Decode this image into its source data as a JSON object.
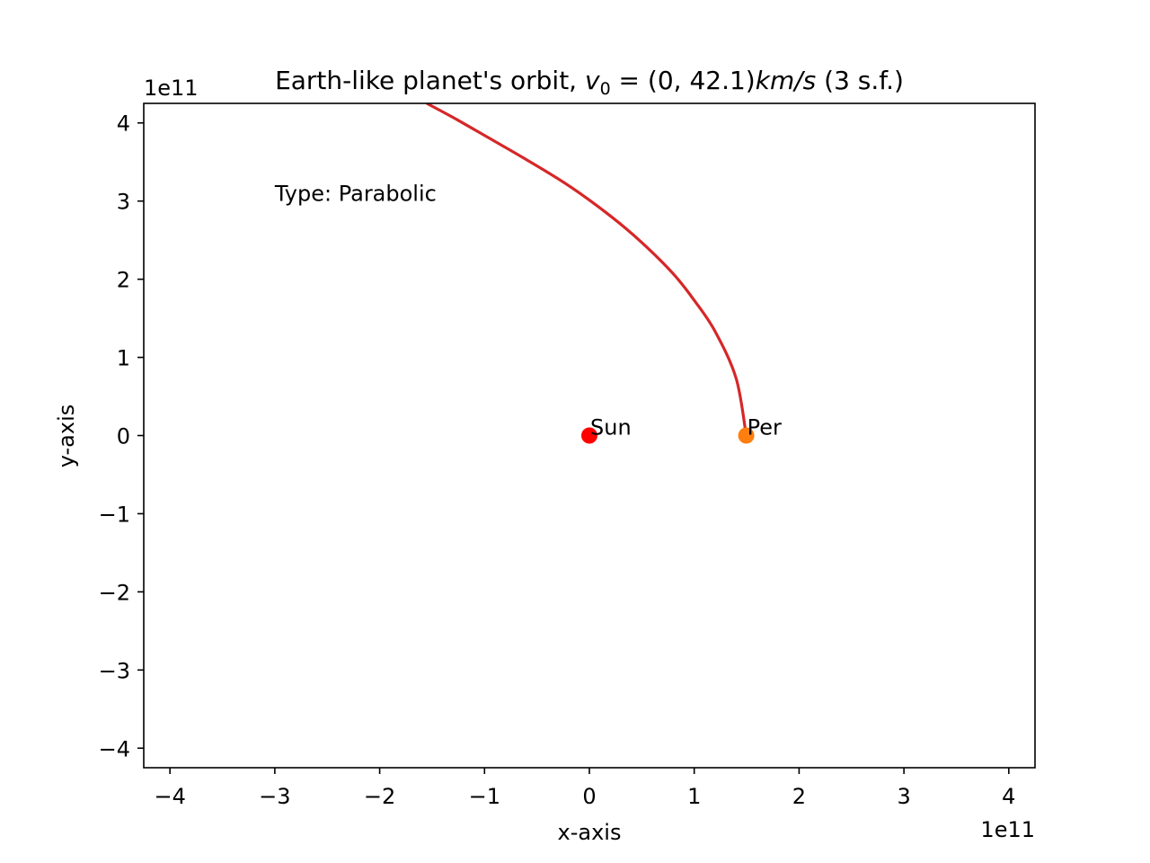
{
  "chart_data": {
    "type": "line",
    "title": {
      "prefix": "Earth-like planet's orbit, ",
      "v": "v",
      "sub": "0",
      "eq": " = (0, 42.1)",
      "unit": "km/s",
      "suffix": " (3 s.f.)"
    },
    "xlabel": "x-axis",
    "ylabel": "y-axis",
    "x_offset_label": "1e11",
    "y_offset_label": "1e11",
    "xlim": [
      -425000000000.0,
      425000000000.0
    ],
    "ylim": [
      -425000000000.0,
      425000000000.0
    ],
    "xticks": [
      -400000000000.0,
      -300000000000.0,
      -200000000000.0,
      -100000000000.0,
      0,
      100000000000.0,
      200000000000.0,
      300000000000.0,
      400000000000.0
    ],
    "xtick_labels": [
      "−4",
      "−3",
      "−2",
      "−1",
      "0",
      "1",
      "2",
      "3",
      "4"
    ],
    "yticks": [
      -400000000000.0,
      -300000000000.0,
      -200000000000.0,
      -100000000000.0,
      0,
      100000000000.0,
      200000000000.0,
      300000000000.0,
      400000000000.0
    ],
    "ytick_labels": [
      "−4",
      "−3",
      "−2",
      "−1",
      "0",
      "1",
      "2",
      "3",
      "4"
    ],
    "grid": false,
    "series": [
      {
        "color": "#d62728",
        "x": [
          149600000000.0,
          140000000000.0,
          120000000000.0,
          100000000000.0,
          80000000000.0,
          50000000000.0,
          20000000000.0,
          -20000000000.0,
          -60000000000.0,
          -100000000000.0,
          -130000000000.0,
          -155000000000.0
        ],
        "y": [
          0.0,
          73000000000.0,
          133000000000.0,
          173000000000.0,
          207000000000.0,
          247000000000.0,
          281000000000.0,
          320000000000.0,
          353000000000.0,
          384000000000.0,
          407000000000.0,
          425000000000.0
        ]
      }
    ],
    "points": [
      {
        "label": "Sun",
        "x": 0.0,
        "y": 0.0,
        "color": "#ff0000"
      },
      {
        "label": "Per",
        "x": 149600000000.0,
        "y": 0.0,
        "color": "#ff7f0e"
      }
    ],
    "annotation": {
      "text": "Type: Parabolic",
      "x": -300000000000.0,
      "y": 300000000000.0
    }
  }
}
